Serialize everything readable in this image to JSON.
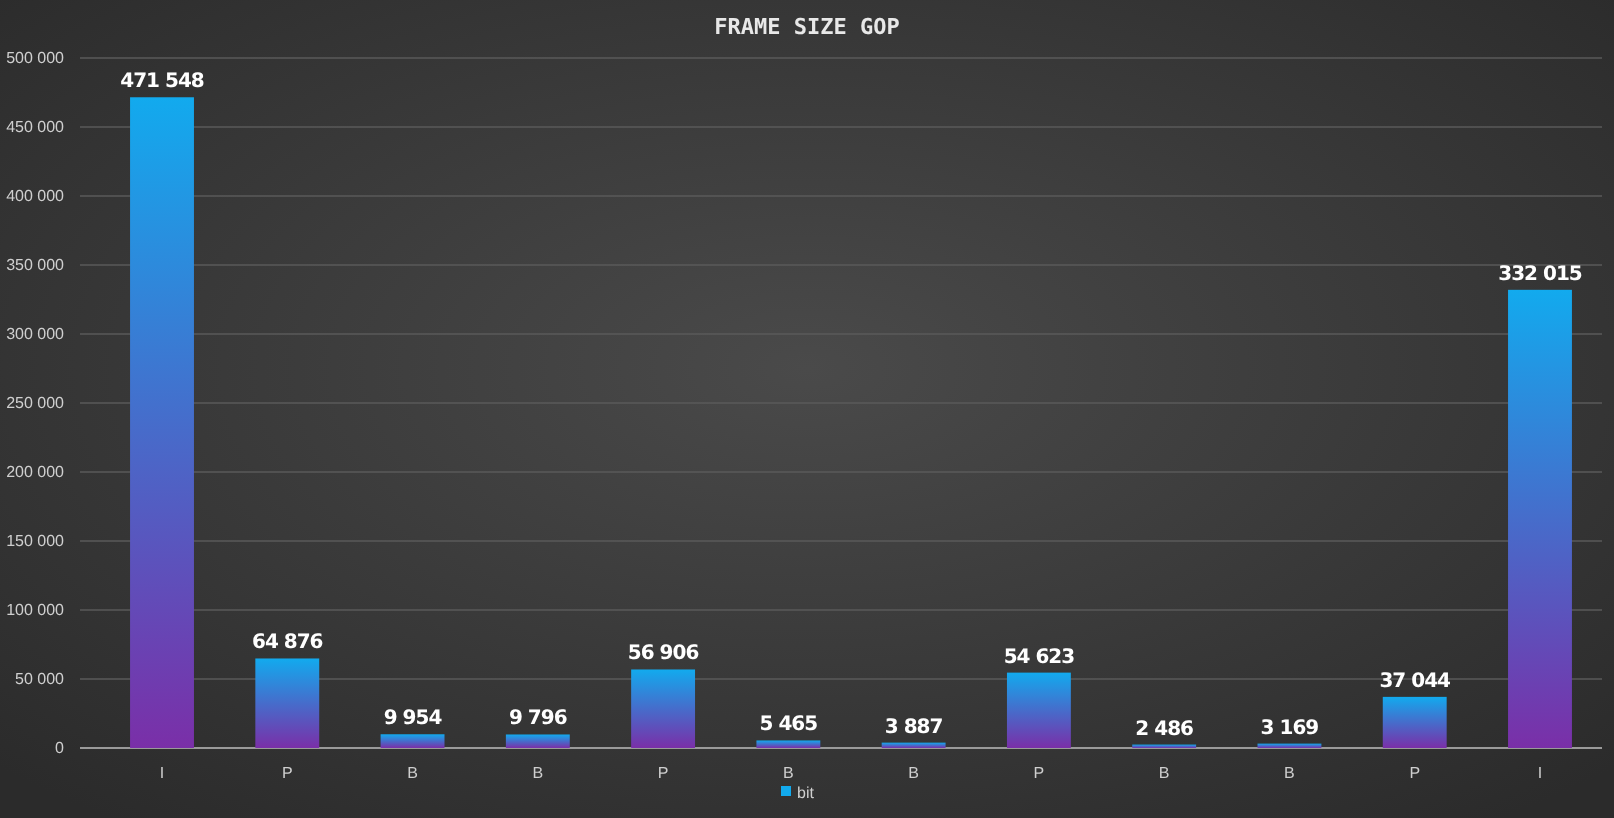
{
  "chart_data": {
    "type": "bar",
    "title": "FRAME SIZE GOP",
    "categories": [
      "I",
      "P",
      "B",
      "B",
      "P",
      "B",
      "B",
      "P",
      "B",
      "B",
      "P",
      "I"
    ],
    "series": [
      {
        "name": "bit",
        "color": "#12aaee",
        "values": [
          471548,
          64876,
          9954,
          9796,
          56906,
          5465,
          3887,
          54623,
          2486,
          3169,
          37044,
          332015
        ],
        "value_labels": [
          "471 548",
          "64 876",
          "9 954",
          "9 796",
          "56 906",
          "5 465",
          "3 887",
          "54 623",
          "2 486",
          "3 169",
          "37 044",
          "332 015"
        ]
      }
    ],
    "ylim": [
      0,
      500000
    ],
    "yticks": [
      0,
      {
        "value": 50000,
        "label": "50 000"
      },
      {
        "value": 100000,
        "label": "100 000"
      },
      {
        "value": 150000,
        "label": "150 000"
      },
      {
        "value": 200000,
        "label": "200 000"
      },
      {
        "value": 250000,
        "label": "250 000"
      },
      {
        "value": 300000,
        "label": "300 000"
      },
      {
        "value": 350000,
        "label": "350 000"
      },
      {
        "value": 400000,
        "label": "400 000"
      },
      {
        "value": 450000,
        "label": "450 000"
      },
      {
        "value": 500000,
        "label": "500 000"
      }
    ],
    "grid": "y",
    "legend": "bottom"
  }
}
